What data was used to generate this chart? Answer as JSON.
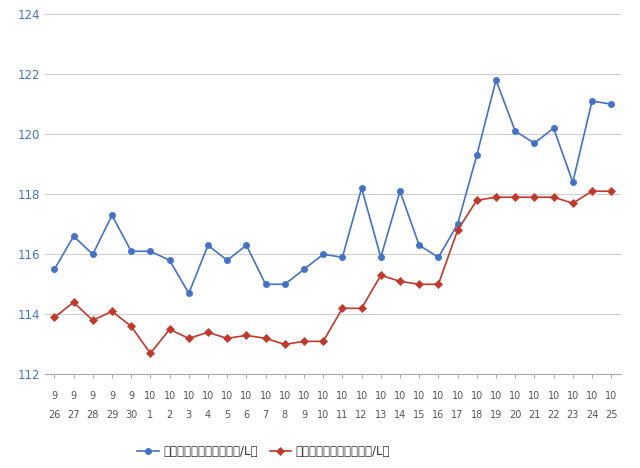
{
  "x_labels_top": [
    "9",
    "9",
    "9",
    "9",
    "9",
    "10",
    "10",
    "10",
    "10",
    "10",
    "10",
    "10",
    "10",
    "10",
    "10",
    "10",
    "10",
    "10",
    "10",
    "10",
    "10",
    "10",
    "10",
    "10",
    "10",
    "10",
    "10",
    "10",
    "10",
    "10"
  ],
  "x_labels_bot": [
    "26",
    "27",
    "28",
    "29",
    "30",
    "1",
    "2",
    "3",
    "4",
    "5",
    "6",
    "7",
    "8",
    "9",
    "10",
    "11",
    "12",
    "13",
    "14",
    "15",
    "16",
    "17",
    "18",
    "19",
    "20",
    "21",
    "22",
    "23",
    "24",
    "25"
  ],
  "blue_values": [
    115.5,
    116.6,
    116.0,
    117.3,
    116.1,
    116.1,
    115.8,
    114.7,
    116.3,
    115.8,
    116.3,
    115.0,
    115.0,
    115.5,
    116.0,
    115.9,
    118.2,
    115.9,
    118.1,
    116.3,
    115.9,
    117.0,
    119.3,
    121.8,
    120.1,
    119.7,
    120.2,
    118.4,
    121.1,
    121.0
  ],
  "red_values": [
    113.9,
    114.4,
    113.8,
    114.1,
    113.6,
    112.7,
    113.5,
    113.2,
    113.4,
    113.2,
    113.3,
    113.2,
    113.0,
    113.1,
    113.1,
    114.2,
    114.2,
    115.3,
    115.1,
    115.0,
    115.0,
    116.8,
    117.8,
    117.9,
    117.9,
    117.9,
    117.9,
    117.7,
    118.1,
    118.1
  ],
  "blue_color": "#4472c4",
  "red_color": "#c0392b",
  "ylim_min": 112,
  "ylim_max": 124,
  "yticks": [
    112,
    114,
    116,
    118,
    120,
    122,
    124
  ],
  "blue_label": "レギュラー看板価格（円/L）",
  "red_label": "レギュラー実売価格（円/L）",
  "bg_color": "#ffffff",
  "grid_color": "#d0d0d0",
  "marker_size": 4.5,
  "linewidth": 1.2,
  "ytick_color": "#4472c4",
  "xtick_color": "#555555",
  "spine_color": "#aaaaaa"
}
